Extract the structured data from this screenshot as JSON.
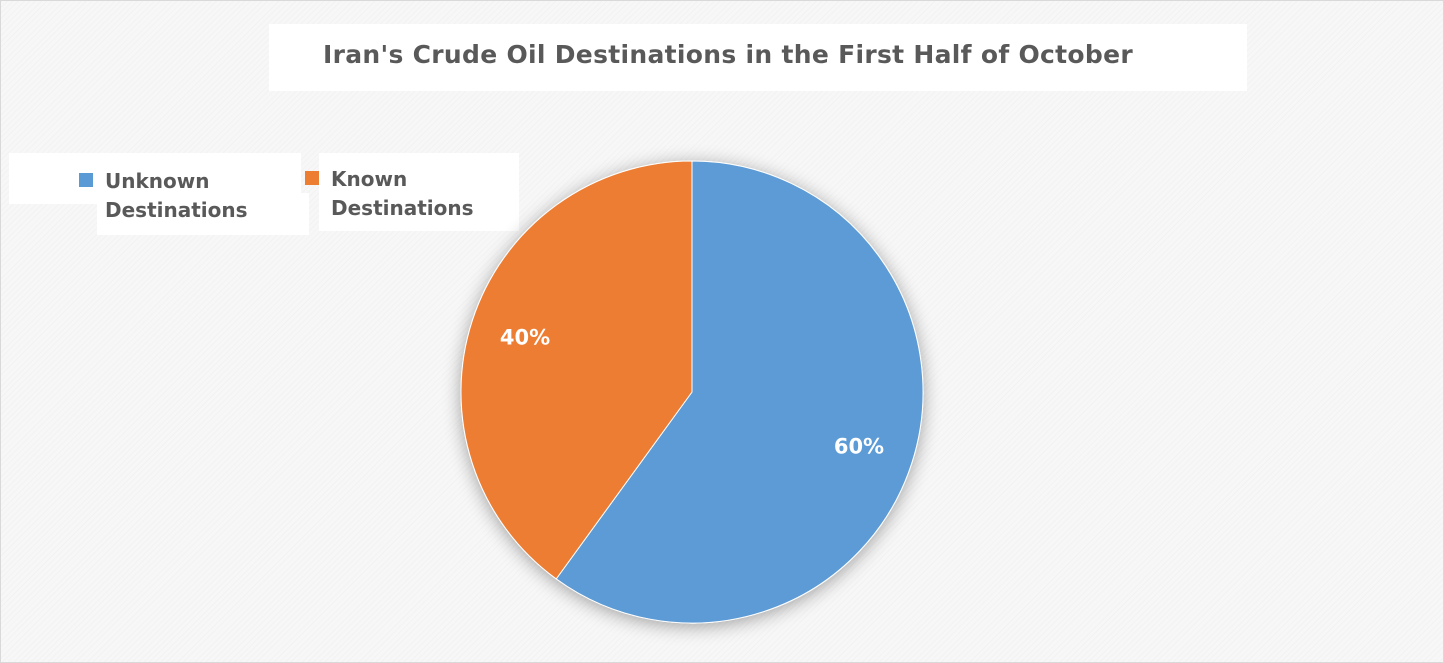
{
  "chart_data": {
    "type": "pie",
    "title": "Iran's Crude Oil Destinations in the First Half of October",
    "categories": [
      "Unknown Destinations",
      "Known Destinations"
    ],
    "values": [
      60,
      40
    ],
    "labels": [
      "60%",
      "40%"
    ],
    "colors": [
      "#5b9bd5",
      "#ed7d31"
    ],
    "legend_position": "top-left"
  }
}
